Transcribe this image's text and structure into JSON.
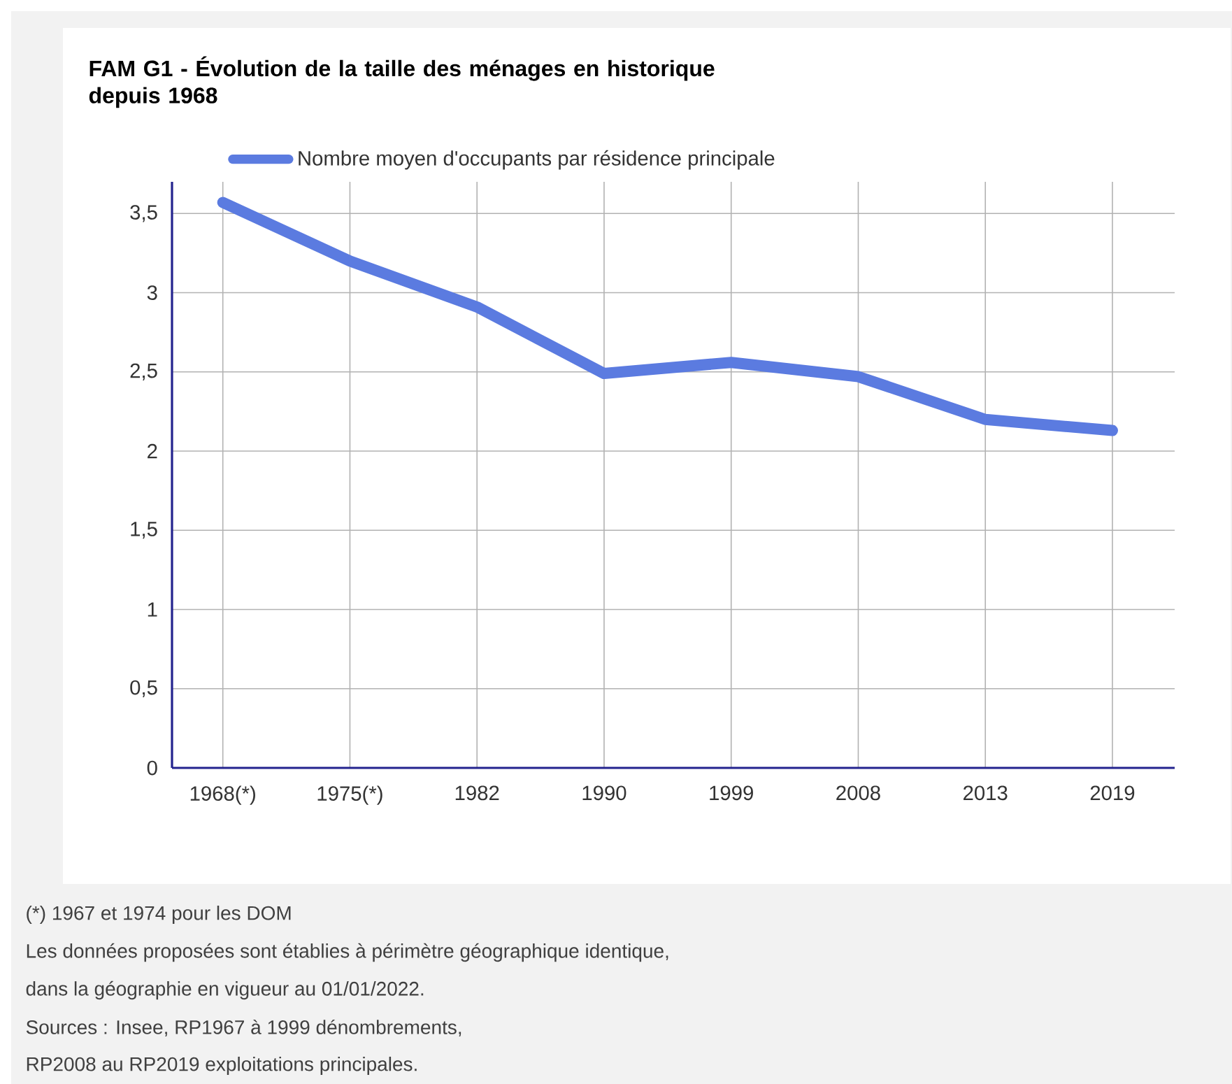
{
  "chart_data": {
    "type": "line",
    "title": "FAM G1 - Évolution de la taille des ménages en historique depuis 1968",
    "categories": [
      "1968(*)",
      "1975(*)",
      "1982",
      "1990",
      "1999",
      "2008",
      "2013",
      "2019"
    ],
    "series": [
      {
        "name": "Nombre moyen d'occupants par résidence principale",
        "color": "#5b7be0",
        "values": [
          3.57,
          3.2,
          2.91,
          2.49,
          2.56,
          2.47,
          2.2,
          2.13
        ]
      }
    ],
    "ylim": [
      0,
      3.7
    ],
    "yticks": [
      0,
      {
        "value": 0.5,
        "label": "0,5"
      },
      1,
      {
        "value": 1.5,
        "label": "1,5"
      },
      2,
      {
        "value": 2.5,
        "label": "2,5"
      },
      3,
      {
        "value": 3.5,
        "label": "3,5"
      }
    ],
    "grid": true,
    "legend": "top",
    "line_style": "solid",
    "annotations": [
      "(*) 1967 et 1974 pour les DOM",
      "Les données proposées sont établies à périmètre géographique identique,",
      "dans la géographie en vigueur au 01/01/2022.",
      "Sources : Insee, RP1967 à 1999 dénombrements,",
      "RP2008 au RP2019 exploitations principales."
    ]
  }
}
